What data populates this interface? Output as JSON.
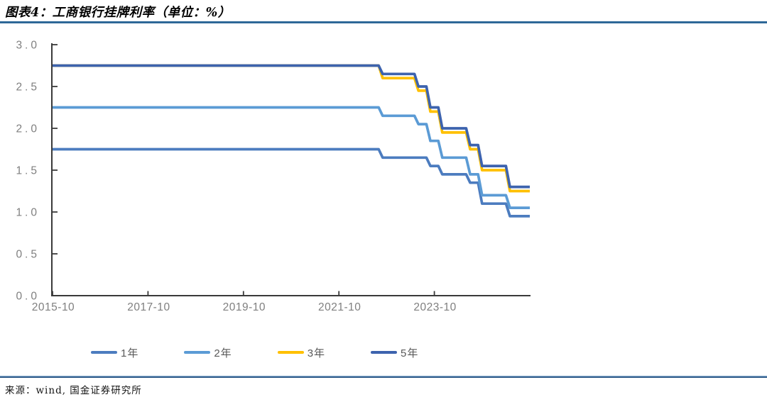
{
  "header": {
    "title": "图表4：工商银行挂牌利率（单位：%）",
    "rule_color": "#2E6898"
  },
  "footer": {
    "source": "来源：wind, 国金证券研究所",
    "rule_color": "#24507C"
  },
  "chart_data": {
    "type": "line",
    "title": "工商银行挂牌利率",
    "unit": "%",
    "grid": false,
    "legend_position": "bottom",
    "axis_color": "#3A3A3A",
    "tick_label_color": "#7F7F7F",
    "x_axis": {
      "start": "2015-10",
      "end": "2025-10",
      "tick_interval_months": 24,
      "tick_labels": [
        "2015-10",
        "2017-10",
        "2019-10",
        "2021-10",
        "2023-10"
      ]
    },
    "y_axis": {
      "min": 0,
      "max": 3,
      "tick_labels": [
        "3.0",
        "2.5",
        "2.0",
        "1.5",
        "1.0",
        "0.5",
        "0.0"
      ]
    },
    "series": [
      {
        "name": "1年",
        "color": "#4C7CBF",
        "steps": [
          [
            "2015-10",
            1.75
          ],
          [
            "2022-09",
            1.65
          ],
          [
            "2023-09",
            1.55
          ],
          [
            "2023-12",
            1.45
          ],
          [
            "2024-07",
            1.35
          ],
          [
            "2024-10",
            1.1
          ],
          [
            "2025-05",
            0.95
          ]
        ]
      },
      {
        "name": "2年",
        "color": "#5B9BD5",
        "steps": [
          [
            "2015-10",
            2.25
          ],
          [
            "2022-09",
            2.15
          ],
          [
            "2023-06",
            2.05
          ],
          [
            "2023-09",
            1.85
          ],
          [
            "2023-12",
            1.65
          ],
          [
            "2024-07",
            1.45
          ],
          [
            "2024-10",
            1.2
          ],
          [
            "2025-05",
            1.05
          ]
        ]
      },
      {
        "name": "3年",
        "color": "#FFC000",
        "steps": [
          [
            "2015-10",
            2.75
          ],
          [
            "2022-09",
            2.6
          ],
          [
            "2023-06",
            2.45
          ],
          [
            "2023-09",
            2.2
          ],
          [
            "2023-12",
            1.95
          ],
          [
            "2024-07",
            1.75
          ],
          [
            "2024-10",
            1.5
          ],
          [
            "2025-05",
            1.25
          ]
        ]
      },
      {
        "name": "5年",
        "color": "#3D63AE",
        "steps": [
          [
            "2015-10",
            2.75
          ],
          [
            "2022-09",
            2.65
          ],
          [
            "2023-06",
            2.5
          ],
          [
            "2023-09",
            2.25
          ],
          [
            "2023-12",
            2.0
          ],
          [
            "2024-07",
            1.8
          ],
          [
            "2024-10",
            1.55
          ],
          [
            "2025-05",
            1.3
          ]
        ]
      }
    ]
  }
}
